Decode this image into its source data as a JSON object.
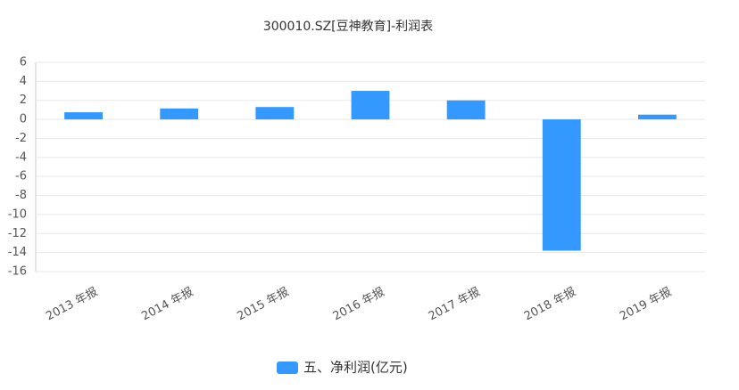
{
  "chart_data": {
    "type": "bar",
    "title": "300010.SZ[豆神教育]-利润表",
    "categories": [
      "2013 年报",
      "2014 年报",
      "2015 年报",
      "2016 年报",
      "2017 年报",
      "2018 年报",
      "2019 年报"
    ],
    "series": [
      {
        "name": "五、净利润(亿元)",
        "color": "#3399ff",
        "values": [
          0.75,
          1.15,
          1.3,
          3.0,
          2.0,
          -13.8,
          0.5
        ]
      }
    ],
    "ylim": [
      -16,
      6
    ],
    "yticks": [
      -16,
      -14,
      -12,
      -10,
      -8,
      -6,
      -4,
      -2,
      0,
      2,
      4,
      6
    ],
    "grid": true,
    "legend": "bottom"
  }
}
